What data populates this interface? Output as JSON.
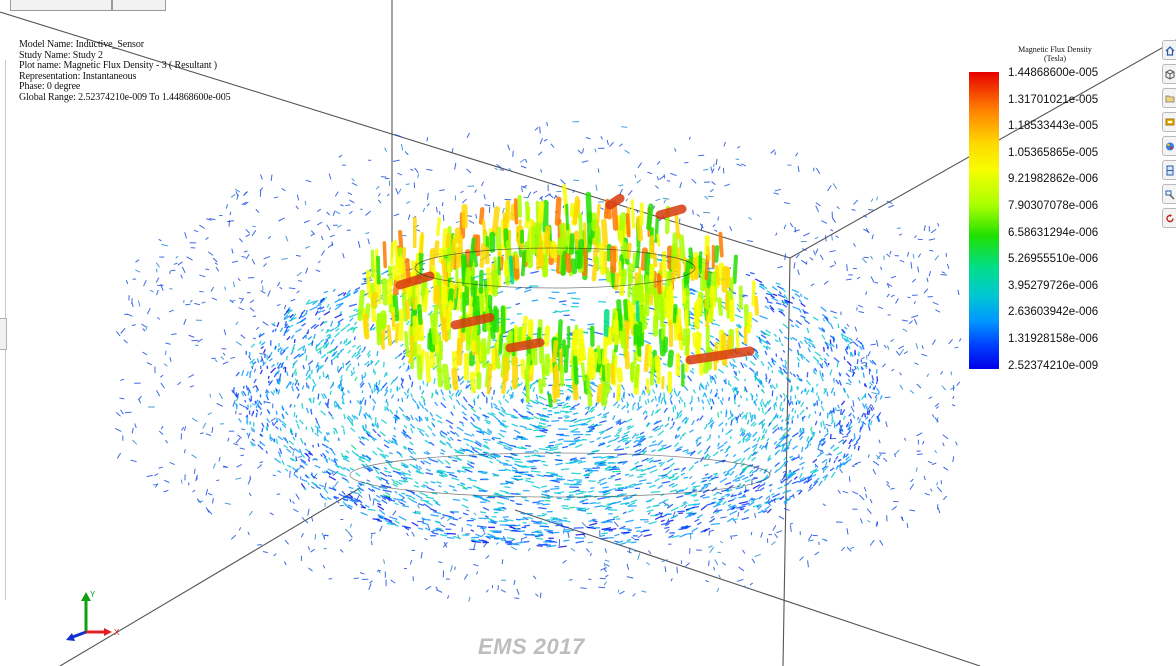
{
  "plot_info": {
    "model_name": "Model Name: Inductive_Sensor",
    "study_name": "Study Name: Study 2",
    "plot_name": "Plot name: Magnetic Flux Density - 3 ( Resultant )",
    "representation": "Representation: Instantaneous",
    "phase": "Phase: 0 degree",
    "global_range": "Global Range: 2.52374210e-009 To 1.44868600e-005"
  },
  "legend": {
    "title": "Magnetic Flux Density",
    "unit": "(Tesla)",
    "labels": [
      "1.44868600e-005",
      "1.31701021e-005",
      "1.18533443e-005",
      "1.05365865e-005",
      "9.21982862e-006",
      "7.90307078e-006",
      "6.58631294e-006",
      "5.26955510e-006",
      "3.95279726e-006",
      "2.63603942e-006",
      "1.31928158e-006",
      "2.52374210e-009"
    ],
    "colors": [
      "#e60000",
      "#ff7a00",
      "#ffd800",
      "#f6ff00",
      "#a8ff00",
      "#22e000",
      "#00dd8a",
      "#00c8d0",
      "#0096ff",
      "#0040ff",
      "#0000e8"
    ]
  },
  "axes_triad": {
    "x": "X",
    "y": "Y",
    "x_color": "#e02020",
    "y_color": "#10a010",
    "z_color": "#1030d0"
  },
  "toolbar": {
    "icons": [
      "home-icon",
      "cube-view-icon",
      "folder-icon",
      "display-settings-icon",
      "color-palette-icon",
      "section-view-icon",
      "zoom-window-icon",
      "rotate-icon"
    ]
  },
  "watermark": "EMS 2017"
}
